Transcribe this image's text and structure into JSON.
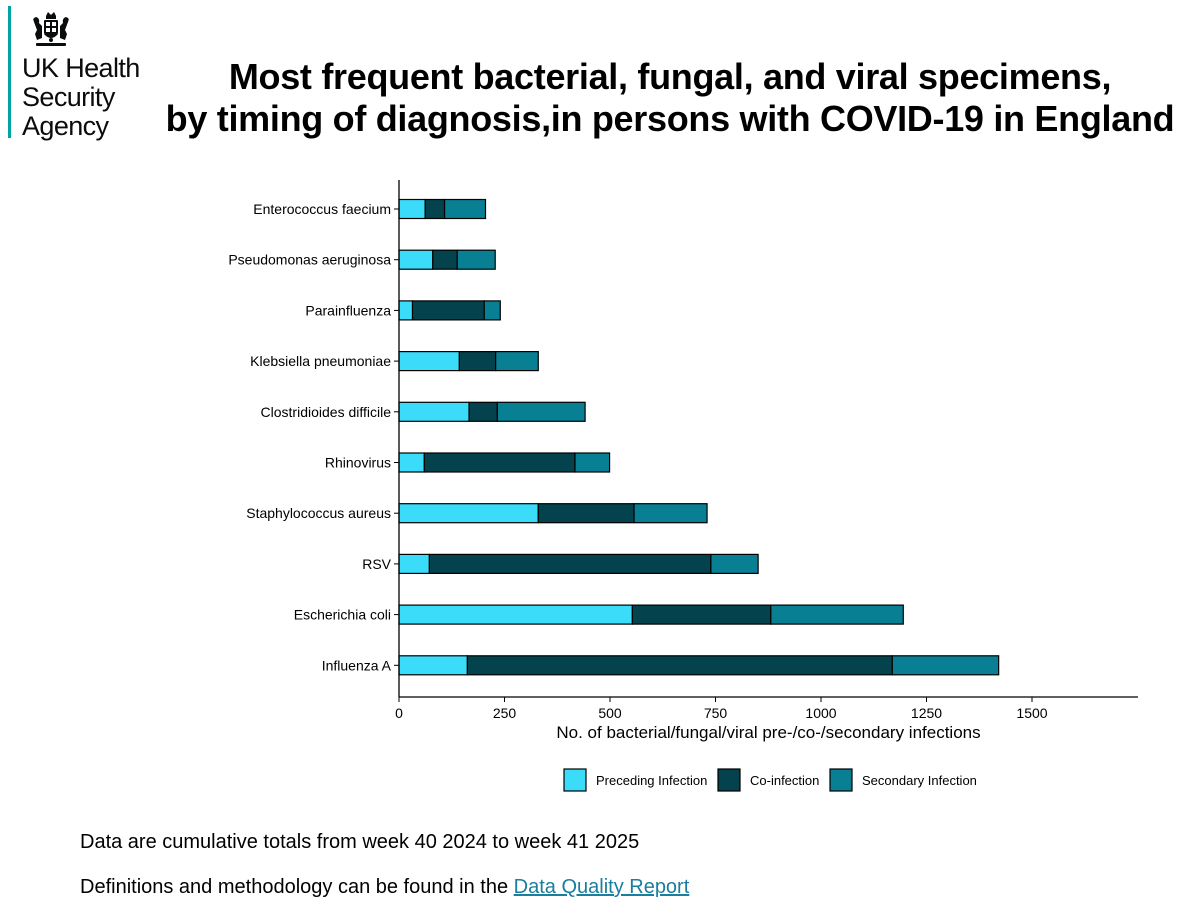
{
  "logo": {
    "crest_icon": "royal-coat-of-arms-icon",
    "line1": "UK Health",
    "line2": "Security",
    "line3": "Agency",
    "accent_color": "#00a4a7"
  },
  "title": {
    "line1": "Most frequent bacterial, fungal, and viral specimens,",
    "line2": "by timing of diagnosis,in persons with COVID-19 in England"
  },
  "chart_data": {
    "type": "bar",
    "orientation": "horizontal",
    "stacked": true,
    "categories": [
      "Enterococcus faecium",
      "Pseudomonas aeruginosa",
      "Parainfluenza",
      "Klebsiella pneumoniae",
      "Clostridioides difficile",
      "Rhinovirus",
      "Staphylococcus aureus",
      "RSV",
      "Escherichia coli",
      "Influenza A"
    ],
    "series": [
      {
        "name": "Preceding Infection",
        "color": "#3bdcfa",
        "values": [
          62,
          80,
          32,
          143,
          166,
          60,
          330,
          72,
          553,
          162
        ]
      },
      {
        "name": "Co-infection",
        "color": "#04424d",
        "values": [
          46,
          58,
          170,
          86,
          67,
          357,
          227,
          667,
          328,
          1007
        ]
      },
      {
        "name": "Secondary Infection",
        "color": "#087f93",
        "values": [
          97,
          90,
          38,
          101,
          208,
          82,
          173,
          112,
          314,
          252
        ]
      }
    ],
    "xlabel": "No. of bacterial/fungal/viral pre-/co-/secondary infections",
    "ylabel": "",
    "xlim": [
      0,
      1750
    ],
    "xticks": [
      0,
      250,
      500,
      750,
      1000,
      1250,
      1500
    ],
    "legend_position": "bottom",
    "grid": false
  },
  "footnotes": {
    "line1": "Data are cumulative totals from week 40 2024 to week 41 2025",
    "line2_prefix": "Definitions and methodology can be found in the ",
    "line2_link": "Data Quality Report"
  }
}
